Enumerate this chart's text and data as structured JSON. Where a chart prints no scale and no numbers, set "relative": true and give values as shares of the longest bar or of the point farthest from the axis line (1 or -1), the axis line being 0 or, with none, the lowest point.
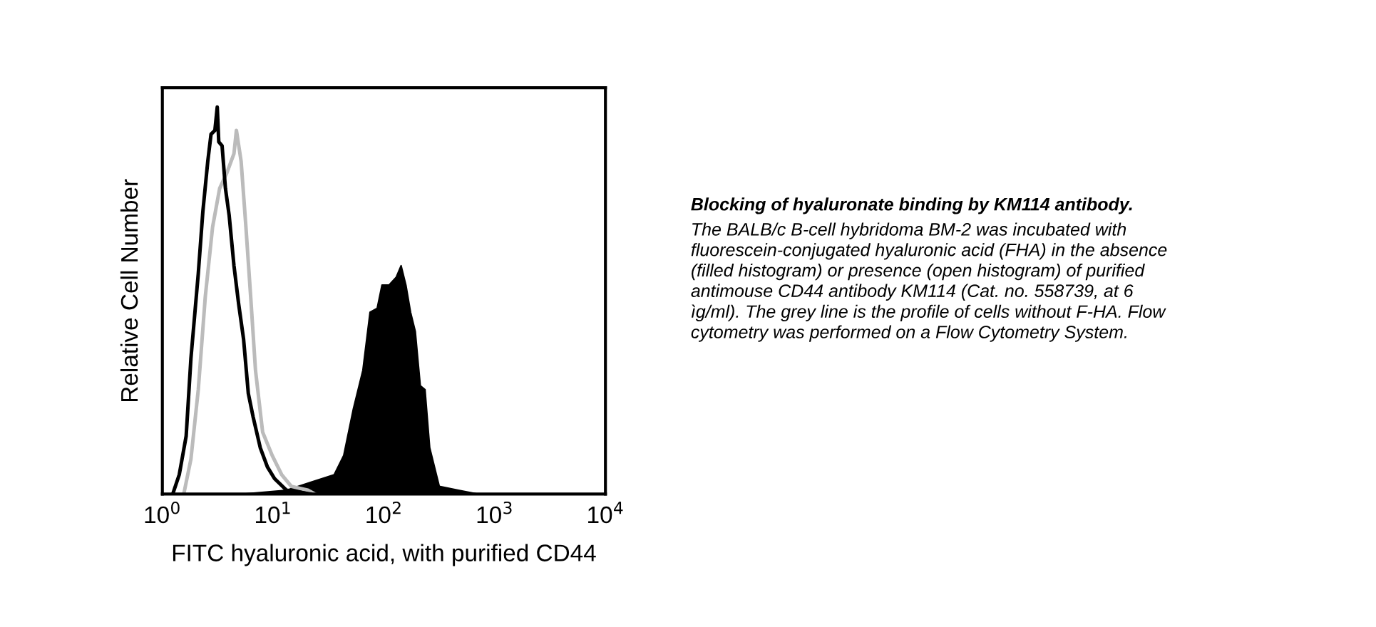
{
  "chart_data": {
    "type": "line",
    "relative": true,
    "log": "x",
    "xlabel": "FITC hyaluronic acid, with purified CD44",
    "ylabel": "Relative Cell Number",
    "xlim": [
      1,
      10000
    ],
    "xticks": [
      {
        "value": 1,
        "label": "10$^{0}$"
      },
      {
        "value": 10,
        "label": "10$^{1}$"
      },
      {
        "value": 100,
        "label": "10$^{2}$"
      },
      {
        "value": 1000,
        "label": "10$^{3}$"
      },
      {
        "value": 10000,
        "label": "10$^{4}$"
      }
    ],
    "grid": false,
    "legend": false,
    "annotations": [
      "Blocking of hyaluronate binding by KM114 antibody.",
      "The BALB/c B-cell hybridoma BM-2 was incubated with\nfluorescein-conjugated hyaluronic acid (FHA) in the absence\n(filled histogram) or presence (open histogram) of purified\nantimouse CD44 antibody KM114 (Cat. no. 558739, at 6\nìg/ml). The grey line is the profile of cells without F-HA. Flow\ncytometry was performed on a Flow Cytometry System."
    ],
    "series": [
      {
        "type": "area",
        "color": "#000000",
        "x": [
          5.41,
          13.2,
          21.7,
          35.6,
          43.4,
          53.0,
          64.6,
          75.0,
          87.0,
          96.1,
          111,
          129,
          143,
          158,
          174,
          192,
          213,
          235,
          259,
          316,
          470,
          700
        ],
        "values": [
          0,
          0.01,
          0.03,
          0.05,
          0.1,
          0.22,
          0.32,
          0.47,
          0.48,
          0.54,
          0.54,
          0.56,
          0.59,
          0.54,
          0.47,
          0.42,
          0.28,
          0.27,
          0.12,
          0.02,
          0.01,
          0
        ]
      },
      {
        "color": "#bbbbbb",
        "x": [
          1.56,
          1.81,
          2.11,
          2.44,
          2.84,
          3.29,
          3.82,
          4.43,
          4.66,
          5.14,
          5.68,
          6.27,
          6.93,
          8.04,
          9.8,
          11.96,
          14.6,
          20.6,
          23.9
        ],
        "values": [
          0,
          0.09,
          0.27,
          0.51,
          0.69,
          0.79,
          0.83,
          0.88,
          0.94,
          0.86,
          0.69,
          0.51,
          0.32,
          0.16,
          0.1,
          0.05,
          0.02,
          0.01,
          0
        ]
      },
      {
        "color": "#000000",
        "x": [
          1.24,
          1.42,
          1.64,
          1.81,
          2.11,
          2.32,
          2.57,
          2.75,
          2.98,
          3.13,
          3.23,
          3.46,
          3.71,
          4.01,
          4.43,
          4.89,
          5.41,
          5.97,
          6.59,
          7.65,
          8.88,
          10.3,
          13.2,
          21.7
        ],
        "values": [
          0,
          0.05,
          0.15,
          0.35,
          0.57,
          0.73,
          0.86,
          0.93,
          0.94,
          1.0,
          0.91,
          0.9,
          0.79,
          0.72,
          0.59,
          0.49,
          0.4,
          0.26,
          0.2,
          0.12,
          0.07,
          0.04,
          0.01,
          0
        ]
      }
    ]
  }
}
